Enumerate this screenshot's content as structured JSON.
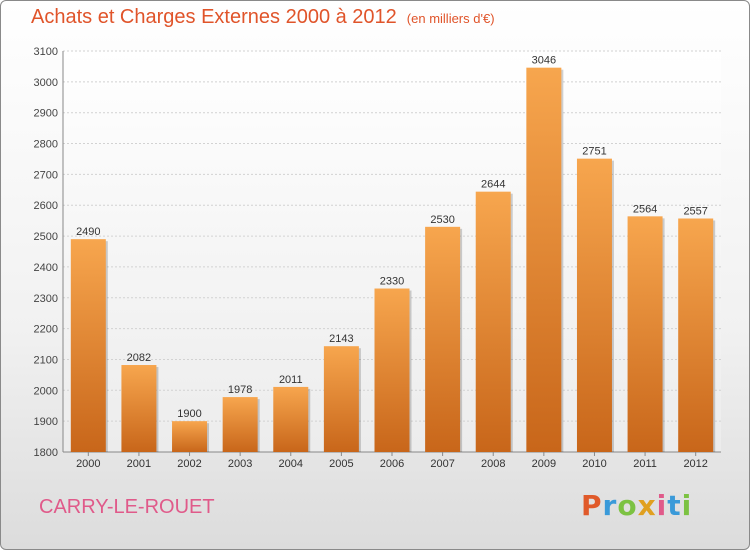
{
  "header": {
    "title": "Achats et Charges Externes 2000 à 2012",
    "subtitle": "(en milliers d'€)"
  },
  "footer": {
    "city": "CARRY-LE-ROUET",
    "logo": "Proxiti"
  },
  "colors": {
    "bar_light": "#f7a64e",
    "bar_dark": "#c8661a",
    "title": "#e0542a",
    "city": "#e05a8a"
  },
  "chart_data": {
    "type": "bar",
    "title": "Achats et Charges Externes 2000 à 2012",
    "subtitle": "(en milliers d'€)",
    "categories": [
      "2000",
      "2001",
      "2002",
      "2003",
      "2004",
      "2005",
      "2006",
      "2007",
      "2008",
      "2009",
      "2010",
      "2011",
      "2012"
    ],
    "values": [
      2490,
      2082,
      1900,
      1978,
      2011,
      2143,
      2330,
      2530,
      2644,
      3046,
      2751,
      2564,
      2557
    ],
    "ylim": [
      1800,
      3100
    ],
    "yticks": [
      1800,
      1900,
      2000,
      2100,
      2200,
      2300,
      2400,
      2500,
      2600,
      2700,
      2800,
      2900,
      3000,
      3100
    ],
    "grid": true,
    "xlabel": "",
    "ylabel": ""
  }
}
